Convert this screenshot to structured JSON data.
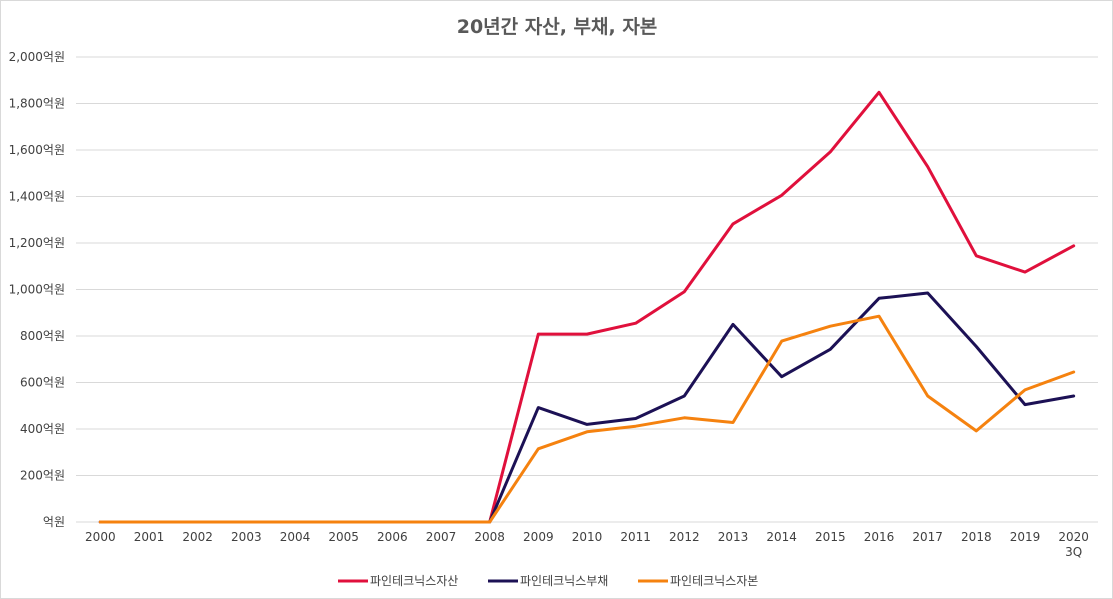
{
  "chart_data": {
    "type": "line",
    "title": "20년간 자산, 부채, 자본",
    "xlabel": "",
    "ylabel": "",
    "categories": [
      "2000",
      "2001",
      "2002",
      "2003",
      "2004",
      "2005",
      "2006",
      "2007",
      "2008",
      "2009",
      "2010",
      "2011",
      "2012",
      "2013",
      "2014",
      "2015",
      "2016",
      "2017",
      "2018",
      "2019",
      "2020\n3Q"
    ],
    "y_ticks": [
      "억원",
      "200억원",
      "400억원",
      "600억원",
      "800억원",
      "1,000억원",
      "1,200억원",
      "1,400억원",
      "1,600억원",
      "1,800억원",
      "2,000억원"
    ],
    "ylim": [
      0,
      2000
    ],
    "grid": true,
    "legend_position": "bottom",
    "series": [
      {
        "name": "파인테크닉스자산",
        "color": "#e0103c",
        "values": [
          0,
          0,
          0,
          0,
          0,
          0,
          0,
          0,
          0,
          808,
          808,
          855,
          990,
          1282,
          1405,
          1592,
          1848,
          1528,
          1145,
          1075,
          1188
        ]
      },
      {
        "name": "파인테크닉스부채",
        "color": "#1c1155",
        "values": [
          0,
          0,
          0,
          0,
          0,
          0,
          0,
          0,
          0,
          492,
          420,
          445,
          542,
          850,
          625,
          743,
          962,
          985,
          755,
          505,
          542
        ]
      },
      {
        "name": "파인테크닉스자본",
        "color": "#f5820f",
        "values": [
          0,
          0,
          0,
          0,
          0,
          0,
          0,
          0,
          0,
          315,
          388,
          412,
          448,
          428,
          778,
          842,
          885,
          542,
          392,
          568,
          645
        ]
      }
    ]
  }
}
